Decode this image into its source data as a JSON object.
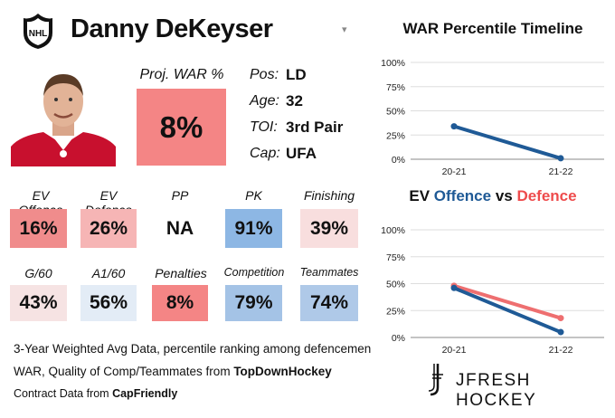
{
  "player": {
    "name": "Danny DeKeyser",
    "league_logo": "NHL",
    "dropdown_icon": "▾"
  },
  "proj": {
    "label": "Proj. WAR %",
    "value": "8%",
    "color": "#f48585"
  },
  "info": [
    {
      "label": "Pos:",
      "value": "LD"
    },
    {
      "label": "Age:",
      "value": "32"
    },
    {
      "label": "TOI:",
      "value": "3rd Pair"
    },
    {
      "label": "Cap:",
      "value": "UFA"
    }
  ],
  "stats_row1": [
    {
      "label": "EV Offence",
      "value": "16%",
      "color": "#f08c8c"
    },
    {
      "label": "EV Defence",
      "value": "26%",
      "color": "#f6b5b5"
    },
    {
      "label": "PP",
      "value": "NA",
      "color": "#ffffff"
    },
    {
      "label": "PK",
      "value": "91%",
      "color": "#8db7e4"
    },
    {
      "label": "Finishing",
      "value": "39%",
      "color": "#f8dede"
    }
  ],
  "stats_row2": [
    {
      "label": "G/60",
      "value": "43%",
      "color": "#f6e3e3"
    },
    {
      "label": "A1/60",
      "value": "56%",
      "color": "#e3ecf6"
    },
    {
      "label": "Penalties",
      "value": "8%",
      "color": "#f48585"
    },
    {
      "label": "Competition",
      "value": "79%",
      "color": "#a4c3e6"
    },
    {
      "label": "Teammates",
      "value": "74%",
      "color": "#afc9e8"
    }
  ],
  "footer": {
    "line1": "3-Year Weighted Avg Data, percentile ranking among defencemen",
    "line2_prefix": "WAR, Quality of Comp/Teammates from ",
    "line2_source": "TopDownHockey",
    "line3_prefix": "Contract Data from ",
    "line3_source": "CapFriendly"
  },
  "brand": "JFRESH HOCKEY",
  "chart_data": [
    {
      "type": "line",
      "title": "WAR Percentile Timeline",
      "categories": [
        "20-21",
        "21-22"
      ],
      "yticks": [
        "0%",
        "25%",
        "50%",
        "75%",
        "100%"
      ],
      "ylim": [
        0,
        100
      ],
      "series": [
        {
          "name": "WAR",
          "values": [
            34,
            1
          ],
          "color": "#1f5a96"
        }
      ]
    },
    {
      "type": "line",
      "title": "EV Offence vs Defence",
      "title_parts": [
        "EV ",
        "Offence",
        " vs ",
        "Defence"
      ],
      "categories": [
        "20-21",
        "21-22"
      ],
      "yticks": [
        "0%",
        "25%",
        "50%",
        "75%",
        "100%"
      ],
      "ylim": [
        0,
        100
      ],
      "series": [
        {
          "name": "Offence",
          "values": [
            46,
            5
          ],
          "color": "#1f5a96"
        },
        {
          "name": "Defence",
          "values": [
            48,
            18
          ],
          "color": "#ee6f70"
        }
      ]
    }
  ]
}
